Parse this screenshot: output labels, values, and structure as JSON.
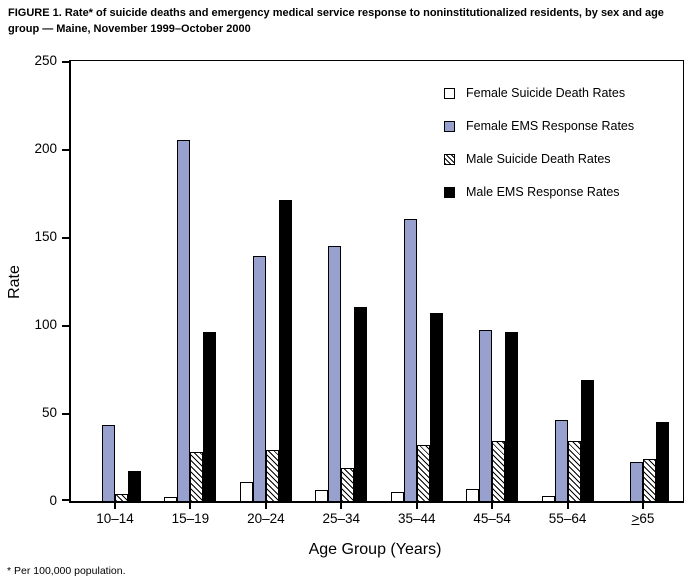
{
  "figure": {
    "title_line1": "FIGURE 1. Rate* of suicide deaths and emergency medical service response to noninstitutionalized residents, by sex and age",
    "title_line2": "group — Maine, November 1999–October 2000",
    "footnote": "* Per 100,000 population."
  },
  "colors": {
    "female_ems_bar": "#98A1CE",
    "male_ems_bar": "#000000",
    "bar_outline": "#000000",
    "background": "#FFFFFF"
  },
  "chart_data": {
    "type": "bar",
    "title": "Rate of suicide deaths and EMS response by sex and age group, Maine, November 1999–October 2000",
    "xlabel": "Age Group (Years)",
    "ylabel": "Rate",
    "ylim": [
      0,
      250
    ],
    "yticks": [
      0,
      50,
      100,
      150,
      200,
      250
    ],
    "grid": false,
    "legend_position": "inside upper right",
    "categories": [
      {
        "label": "10–14",
        "underline_first": false
      },
      {
        "label": "15–19",
        "underline_first": false
      },
      {
        "label": "20–24",
        "underline_first": false
      },
      {
        "label": "25–34",
        "underline_first": false
      },
      {
        "label": "35–44",
        "underline_first": false
      },
      {
        "label": "45–54",
        "underline_first": false
      },
      {
        "label": "55–64",
        "underline_first": false
      },
      {
        "label": ">65",
        "underline_first": true
      }
    ],
    "series": [
      {
        "name": "Female Suicide Death Rates",
        "swatch": "white",
        "color": "#FFFFFF",
        "values": [
          0,
          2,
          11,
          6,
          5,
          7,
          3,
          0
        ]
      },
      {
        "name": "Female EMS Response Rates",
        "swatch": "blue",
        "color": "#98A1CE",
        "values": [
          43,
          205,
          139,
          145,
          160,
          97,
          46,
          22
        ]
      },
      {
        "name": "Male Suicide Death Rates",
        "swatch": "hatch",
        "color": "hatched-black-on-white",
        "values": [
          4,
          28,
          29,
          19,
          32,
          34,
          34,
          24
        ]
      },
      {
        "name": "Male EMS Response Rates",
        "swatch": "black",
        "color": "#000000",
        "values": [
          17,
          96,
          171,
          110,
          107,
          96,
          69,
          45
        ]
      }
    ]
  }
}
